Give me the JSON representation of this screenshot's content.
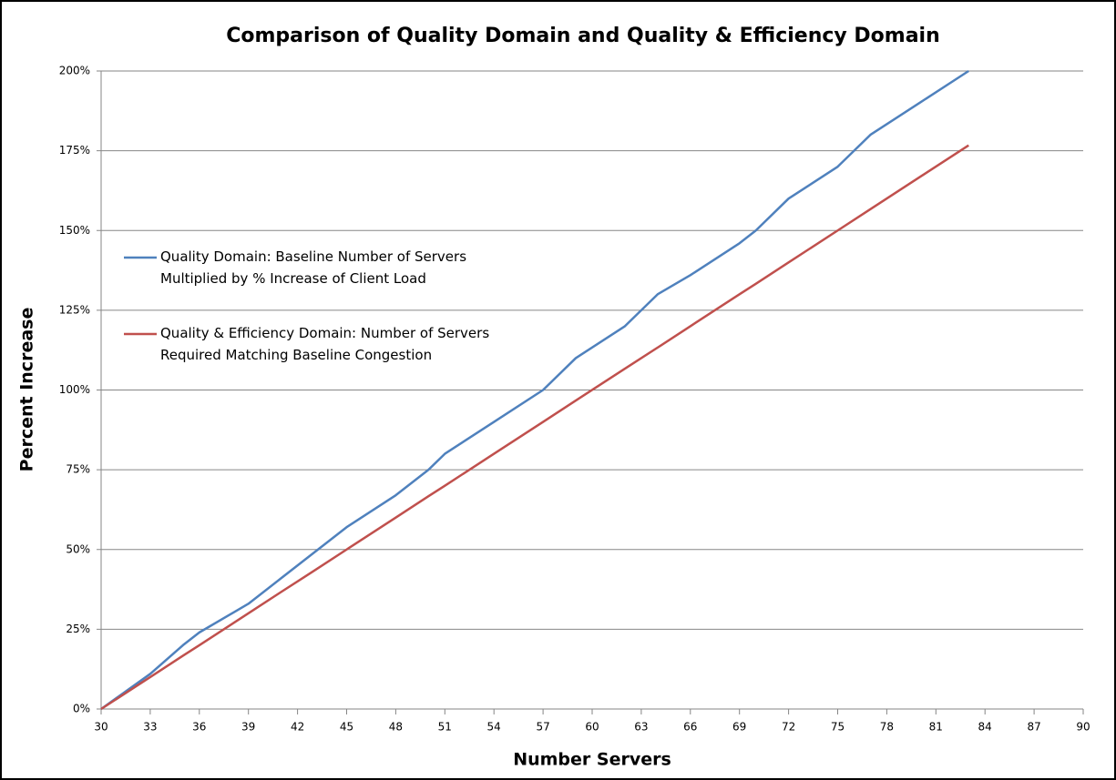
{
  "chart_data": {
    "type": "line",
    "title": "Comparison of Quality Domain and Quality & Efficiency Domain",
    "x_label": "Number Servers",
    "y_label": "Percent Increase",
    "x": [
      30,
      33,
      35,
      36,
      39,
      41,
      43,
      45,
      48,
      50,
      51,
      54,
      57,
      59,
      62,
      64,
      66,
      69,
      70,
      72,
      75,
      77,
      80,
      83
    ],
    "series": [
      {
        "name": "Quality Domain: Baseline Number of Servers Multiplied by % Increase of Client Load",
        "color": "#4f81bd",
        "values": [
          0,
          11,
          20,
          24,
          33,
          41,
          49,
          57,
          67,
          75,
          80,
          90,
          100,
          110,
          120,
          130,
          136,
          146,
          150,
          160,
          170,
          180,
          190,
          200
        ]
      },
      {
        "name": "Quality & Efficiency Domain: Number of Servers Required Matching Baseline Congestion",
        "color": "#c0504d",
        "values": [
          0,
          10,
          16.7,
          20,
          30,
          36.7,
          43.3,
          50,
          60,
          66.7,
          70,
          80,
          90,
          96.7,
          106.7,
          113.3,
          120,
          130,
          133.3,
          140,
          150,
          156.7,
          166.7,
          176.7
        ]
      }
    ],
    "xlim": [
      30,
      90
    ],
    "xticks": [
      30,
      33,
      36,
      39,
      42,
      45,
      48,
      51,
      54,
      57,
      60,
      63,
      66,
      69,
      72,
      75,
      78,
      81,
      84,
      87,
      90
    ],
    "ylim": [
      0,
      200
    ],
    "yticks": [
      {
        "value": 0,
        "label": "0%"
      },
      {
        "value": 25,
        "label": "25%"
      },
      {
        "value": 50,
        "label": "50%"
      },
      {
        "value": 75,
        "label": "75%"
      },
      {
        "value": 100,
        "label": "100%"
      },
      {
        "value": 125,
        "label": "125%"
      },
      {
        "value": 150,
        "label": "150%"
      },
      {
        "value": 175,
        "label": "175%"
      },
      {
        "value": 200,
        "label": "200%"
      }
    ],
    "grid": true,
    "legend": "upper-left"
  }
}
